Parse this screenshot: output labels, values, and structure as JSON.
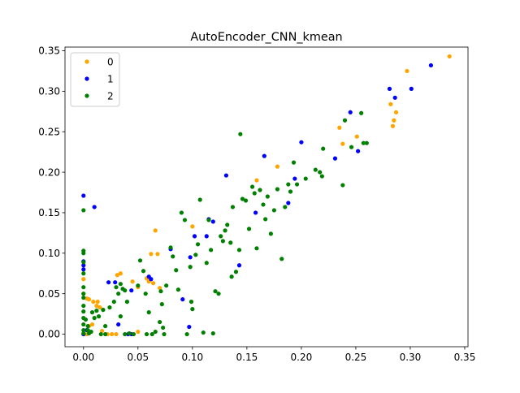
{
  "chart_data": {
    "type": "scatter",
    "title": "AutoEncoder_CNN_kmean",
    "xlabel": "",
    "ylabel": "",
    "xlim": [
      -0.017,
      0.353
    ],
    "ylim": [
      -0.0155,
      0.3545
    ],
    "x_ticks": [
      0.0,
      0.05,
      0.1,
      0.15,
      0.2,
      0.25,
      0.3,
      0.35
    ],
    "x_tick_labels": [
      "0.00",
      "0.05",
      "0.10",
      "0.15",
      "0.20",
      "0.25",
      "0.30",
      "0.35"
    ],
    "y_ticks": [
      0.0,
      0.05,
      0.1,
      0.15,
      0.2,
      0.25,
      0.3,
      0.35
    ],
    "y_tick_labels": [
      "0.00",
      "0.05",
      "0.10",
      "0.15",
      "0.20",
      "0.25",
      "0.30",
      "0.35"
    ],
    "grid": false,
    "legend": {
      "position": "upper-left"
    },
    "series": [
      {
        "name": "0",
        "color": "#ffa500",
        "points": [
          [
            0.336,
            0.343
          ],
          [
            0.297,
            0.325
          ],
          [
            0.282,
            0.284
          ],
          [
            0.287,
            0.274
          ],
          [
            0.285,
            0.264
          ],
          [
            0.284,
            0.257
          ],
          [
            0.235,
            0.255
          ],
          [
            0.238,
            0.235
          ],
          [
            0.251,
            0.244
          ],
          [
            0.159,
            0.19
          ],
          [
            0.178,
            0.207
          ],
          [
            0.066,
            0.128
          ],
          [
            0.1,
            0.133
          ],
          [
            0.062,
            0.099
          ],
          [
            0.068,
            0.099
          ],
          [
            0.034,
            0.075
          ],
          [
            0.031,
            0.073
          ],
          [
            0.045,
            0.065
          ],
          [
            0.058,
            0.069
          ],
          [
            0.06,
            0.065
          ],
          [
            0.064,
            0.063
          ],
          [
            0.07,
            0.057
          ],
          [
            0.05,
            0.058
          ],
          [
            0.0,
            0.068
          ],
          [
            0.0,
            0.05
          ],
          [
            0.003,
            0.044
          ],
          [
            0.005,
            0.043
          ],
          [
            0.009,
            0.04
          ],
          [
            0.013,
            0.04
          ],
          [
            0.012,
            0.035
          ],
          [
            0.015,
            0.033
          ],
          [
            0.005,
            0.01
          ],
          [
            0.008,
            0.012
          ],
          [
            0.017,
            0.004
          ],
          [
            0.022,
            0.0
          ],
          [
            0.026,
            0.0
          ],
          [
            0.03,
            0.0
          ],
          [
            0.05,
            0.003
          ],
          [
            0.0,
            0.0
          ],
          [
            0.003,
            0.0
          ]
        ]
      },
      {
        "name": "1",
        "color": "#0000ff",
        "points": [
          [
            0.0,
            0.171
          ],
          [
            0.01,
            0.157
          ],
          [
            0.0,
            0.09
          ],
          [
            0.0,
            0.085
          ],
          [
            0.0,
            0.08
          ],
          [
            0.319,
            0.332
          ],
          [
            0.301,
            0.303
          ],
          [
            0.281,
            0.303
          ],
          [
            0.286,
            0.292
          ],
          [
            0.245,
            0.274
          ],
          [
            0.231,
            0.217
          ],
          [
            0.252,
            0.226
          ],
          [
            0.2,
            0.237
          ],
          [
            0.166,
            0.22
          ],
          [
            0.131,
            0.196
          ],
          [
            0.194,
            0.192
          ],
          [
            0.119,
            0.139
          ],
          [
            0.115,
            0.142
          ],
          [
            0.113,
            0.121
          ],
          [
            0.102,
            0.121
          ],
          [
            0.188,
            0.162
          ],
          [
            0.158,
            0.15
          ],
          [
            0.143,
            0.085
          ],
          [
            0.08,
            0.105
          ],
          [
            0.098,
            0.095
          ],
          [
            0.091,
            0.043
          ],
          [
            0.097,
            0.009
          ],
          [
            0.06,
            0.071
          ],
          [
            0.062,
            0.068
          ],
          [
            0.044,
            0.054
          ],
          [
            0.029,
            0.064
          ],
          [
            0.023,
            0.064
          ],
          [
            0.032,
            0.012
          ],
          [
            0.041,
            0.0
          ],
          [
            0.044,
            0.0
          ],
          [
            0.0,
            0.0
          ],
          [
            0.003,
            0.005
          ]
        ]
      },
      {
        "name": "2",
        "color": "#008000",
        "points": [
          [
            0.0,
            0.153
          ],
          [
            0.0,
            0.103
          ],
          [
            0.0,
            0.1
          ],
          [
            0.0,
            0.089
          ],
          [
            0.0,
            0.075
          ],
          [
            0.0,
            0.058
          ],
          [
            0.0,
            0.05
          ],
          [
            0.0,
            0.045
          ],
          [
            0.0,
            0.035
          ],
          [
            0.0,
            0.028
          ],
          [
            0.0,
            0.02
          ],
          [
            0.0,
            0.012
          ],
          [
            0.0,
            0.005
          ],
          [
            0.0,
            0.001
          ],
          [
            0.002,
            0.018
          ],
          [
            0.004,
            0.01
          ],
          [
            0.004,
            0.005
          ],
          [
            0.005,
            0.001
          ],
          [
            0.007,
            0.003
          ],
          [
            0.008,
            0.027
          ],
          [
            0.01,
            0.02
          ],
          [
            0.012,
            0.029
          ],
          [
            0.014,
            0.022
          ],
          [
            0.016,
            0.0
          ],
          [
            0.018,
            0.03
          ],
          [
            0.02,
            0.01
          ],
          [
            0.02,
            0.0
          ],
          [
            0.024,
            0.033
          ],
          [
            0.028,
            0.04
          ],
          [
            0.03,
            0.058
          ],
          [
            0.032,
            0.05
          ],
          [
            0.034,
            0.062
          ],
          [
            0.034,
            0.022
          ],
          [
            0.036,
            0.056
          ],
          [
            0.038,
            0.054
          ],
          [
            0.04,
            0.04
          ],
          [
            0.038,
            0.0
          ],
          [
            0.042,
            0.001
          ],
          [
            0.046,
            0.0
          ],
          [
            0.05,
            0.06
          ],
          [
            0.052,
            0.091
          ],
          [
            0.055,
            0.078
          ],
          [
            0.057,
            0.05
          ],
          [
            0.06,
            0.027
          ],
          [
            0.058,
            0.0
          ],
          [
            0.063,
            0.0
          ],
          [
            0.066,
            0.003
          ],
          [
            0.07,
            0.015
          ],
          [
            0.071,
            0.053
          ],
          [
            0.072,
            0.037
          ],
          [
            0.073,
            0.008
          ],
          [
            0.074,
            0.0
          ],
          [
            0.076,
            0.06
          ],
          [
            0.08,
            0.107
          ],
          [
            0.082,
            0.096
          ],
          [
            0.085,
            0.079
          ],
          [
            0.087,
            0.055
          ],
          [
            0.09,
            0.15
          ],
          [
            0.093,
            0.141
          ],
          [
            0.095,
            0.0
          ],
          [
            0.098,
            0.083
          ],
          [
            0.099,
            0.04
          ],
          [
            0.1,
            0.031
          ],
          [
            0.103,
            0.098
          ],
          [
            0.105,
            0.111
          ],
          [
            0.107,
            0.166
          ],
          [
            0.11,
            0.002
          ],
          [
            0.113,
            0.088
          ],
          [
            0.115,
            0.141
          ],
          [
            0.117,
            0.104
          ],
          [
            0.119,
            0.001
          ],
          [
            0.121,
            0.053
          ],
          [
            0.124,
            0.05
          ],
          [
            0.126,
            0.121
          ],
          [
            0.128,
            0.115
          ],
          [
            0.13,
            0.128
          ],
          [
            0.132,
            0.135
          ],
          [
            0.135,
            0.113
          ],
          [
            0.136,
            0.071
          ],
          [
            0.137,
            0.157
          ],
          [
            0.14,
            0.077
          ],
          [
            0.143,
            0.104
          ],
          [
            0.144,
            0.247
          ],
          [
            0.146,
            0.167
          ],
          [
            0.149,
            0.165
          ],
          [
            0.152,
            0.13
          ],
          [
            0.155,
            0.182
          ],
          [
            0.157,
            0.174
          ],
          [
            0.159,
            0.106
          ],
          [
            0.162,
            0.178
          ],
          [
            0.165,
            0.16
          ],
          [
            0.167,
            0.142
          ],
          [
            0.169,
            0.17
          ],
          [
            0.172,
            0.124
          ],
          [
            0.175,
            0.153
          ],
          [
            0.178,
            0.179
          ],
          [
            0.182,
            0.093
          ],
          [
            0.185,
            0.157
          ],
          [
            0.188,
            0.185
          ],
          [
            0.19,
            0.176
          ],
          [
            0.193,
            0.212
          ],
          [
            0.196,
            0.185
          ],
          [
            0.204,
            0.192
          ],
          [
            0.213,
            0.203
          ],
          [
            0.217,
            0.2
          ],
          [
            0.22,
            0.229
          ],
          [
            0.219,
            0.195
          ],
          [
            0.238,
            0.184
          ],
          [
            0.24,
            0.264
          ],
          [
            0.246,
            0.231
          ],
          [
            0.255,
            0.273
          ],
          [
            0.257,
            0.236
          ],
          [
            0.26,
            0.236
          ]
        ]
      }
    ]
  }
}
